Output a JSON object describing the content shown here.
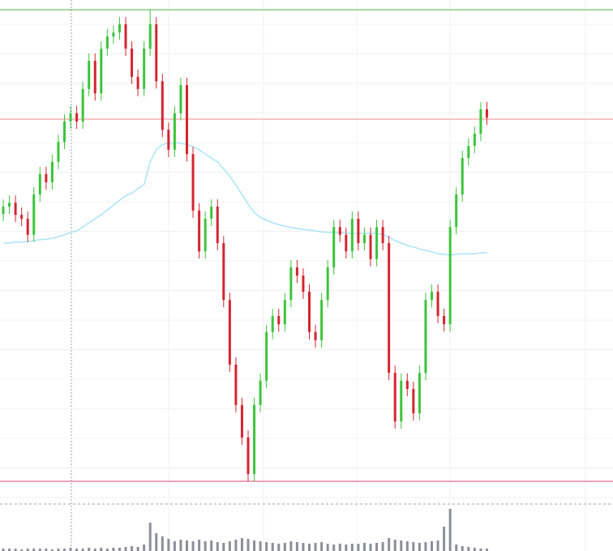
{
  "chart_data": {
    "type": "candlestick",
    "open": [
      56,
      57.5,
      58.3,
      55.8,
      55,
      51.7,
      60,
      64.2,
      62.5,
      66.7,
      70.8,
      75,
      76.7,
      75,
      81.7,
      87.5,
      80.8,
      90,
      92.5,
      93.3,
      95,
      90,
      84.2,
      81.7,
      90,
      95,
      83.3,
      73.3,
      69.2,
      76.7,
      82.5,
      68.3,
      56.7,
      48.3,
      55,
      57.5,
      50,
      38.3,
      25,
      16.7,
      10,
      2.5,
      16.7,
      21.7,
      31.7,
      35,
      33.3,
      38.3,
      45,
      43.3,
      40,
      31.7,
      30,
      38.3,
      45,
      53.3,
      51.7,
      48.3,
      55,
      50,
      51.7,
      46.7,
      53.3,
      50,
      23.3,
      13.3,
      21.7,
      20,
      15,
      23.3,
      38.3,
      40,
      35,
      33.3,
      53.3,
      60,
      67.5,
      70,
      72.5,
      77.5
    ],
    "high": [
      59,
      59.8,
      59.8,
      57.3,
      56.5,
      61.5,
      65.7,
      65.7,
      68.2,
      72.3,
      76.5,
      78.2,
      78.2,
      83.2,
      89,
      89,
      91.5,
      94,
      94.8,
      96.5,
      96.5,
      91.5,
      85.7,
      91.5,
      98,
      96.5,
      84.8,
      74.8,
      78.2,
      84,
      84,
      69.8,
      58.2,
      56.5,
      59,
      59,
      51.5,
      39.8,
      26.5,
      18.2,
      11.5,
      18.2,
      23.2,
      33.2,
      36.5,
      36.5,
      39.8,
      46.5,
      46.5,
      44.8,
      41.5,
      33.2,
      39.8,
      46.5,
      54.8,
      54.8,
      53.2,
      56.5,
      56.5,
      53.2,
      53.2,
      54.8,
      54.8,
      51.5,
      24.8,
      23.2,
      23.2,
      21.5,
      24.8,
      39.8,
      41.5,
      41.5,
      36.5,
      54.8,
      61.5,
      69,
      71.5,
      74,
      79,
      79
    ],
    "low": [
      54.5,
      56,
      54.3,
      53.5,
      50.2,
      50.2,
      58.5,
      61,
      61,
      65.2,
      69.3,
      73.5,
      73.5,
      73.5,
      80.2,
      79.3,
      79.3,
      88.5,
      91,
      91.8,
      88.5,
      82.7,
      80.2,
      80.2,
      88.5,
      81.8,
      71.8,
      67.7,
      67.7,
      75.2,
      66.8,
      55.2,
      46.8,
      46.8,
      53.5,
      48.5,
      36.8,
      23.5,
      15.2,
      8.5,
      1,
      1,
      15.2,
      20.2,
      30.2,
      31.8,
      31.8,
      36.8,
      41.8,
      38.5,
      30.2,
      28.5,
      28.5,
      36.8,
      43.5,
      50.2,
      46.8,
      46.8,
      48.5,
      48.5,
      45.2,
      45.2,
      48.5,
      21.8,
      11.8,
      11.8,
      18.5,
      13.5,
      13.5,
      21.8,
      36.8,
      33.5,
      31.8,
      31.8,
      51.8,
      58.5,
      66,
      68.5,
      71,
      74.3
    ],
    "close": [
      57.5,
      58.3,
      55.8,
      55,
      51.7,
      60,
      64.2,
      62.5,
      66.7,
      70.8,
      75,
      76.7,
      75,
      81.7,
      87.5,
      80.8,
      90,
      92.5,
      93.3,
      95,
      90,
      84.2,
      81.7,
      90,
      95,
      83.3,
      73.3,
      69.2,
      76.7,
      82.5,
      68.3,
      56.7,
      48.3,
      55,
      57.5,
      50,
      38.3,
      25,
      16.7,
      10,
      2.5,
      16.7,
      21.7,
      31.7,
      35,
      33.3,
      38.3,
      45,
      43.3,
      40,
      31.7,
      30,
      38.3,
      45,
      53.3,
      51.7,
      48.3,
      55,
      50,
      51.7,
      46.7,
      53.3,
      50,
      23.3,
      13.3,
      21.7,
      20,
      15,
      23.3,
      38.3,
      40,
      35,
      33.3,
      53.3,
      60,
      67.5,
      70,
      72.5,
      77.5,
      75.8
    ],
    "moving_average": {
      "color": "#a8e4f8",
      "values": [
        50,
        50,
        50.2,
        50.2,
        50.3,
        50.5,
        50.7,
        50.8,
        51,
        51.3,
        51.7,
        52.2,
        52.5,
        53.3,
        54.2,
        55,
        55.8,
        56.8,
        57.8,
        58.8,
        59.7,
        60.3,
        61.2,
        62,
        66.7,
        69.2,
        70.3,
        70.5,
        70.7,
        70.5,
        70.3,
        69.8,
        69.2,
        68.3,
        67.5,
        66.7,
        65.3,
        63.7,
        62,
        60,
        58,
        56.3,
        55.3,
        54.7,
        54.2,
        53.8,
        53.5,
        53.2,
        53,
        52.8,
        52.7,
        52.5,
        52.3,
        52.2,
        52.2,
        52.2,
        52,
        52,
        52,
        52,
        52,
        52,
        51.8,
        51.2,
        50.5,
        50,
        49.5,
        49.2,
        48.8,
        48.5,
        48.2,
        47.8,
        47.7,
        47.5,
        47.7,
        47.8,
        47.8,
        47.8,
        48,
        48
      ]
    },
    "volume": {
      "color": "#8a8f99",
      "ylim": [
        0,
        58
      ],
      "values": [
        3,
        3,
        3,
        2,
        3,
        3,
        3,
        3,
        2,
        3,
        3,
        4,
        3,
        3,
        4,
        3,
        4,
        3,
        4,
        4,
        5,
        6,
        5,
        8,
        35,
        22,
        18,
        15,
        12,
        14,
        13,
        12,
        14,
        12,
        13,
        11,
        10,
        12,
        14,
        16,
        15,
        13,
        12,
        11,
        10,
        9,
        10,
        12,
        11,
        10,
        9,
        10,
        11,
        9,
        8,
        9,
        8,
        9,
        9,
        10,
        9,
        10,
        11,
        16,
        14,
        13,
        12,
        11,
        10,
        11,
        12,
        13,
        30,
        52,
        8,
        6,
        5,
        4,
        3,
        3
      ]
    },
    "levels": [
      {
        "value": 98,
        "color": "#6cc46c"
      },
      {
        "value": 75.5,
        "color": "#f4a0a8"
      },
      {
        "value": 1,
        "color": "#e46a8a"
      }
    ],
    "up_color": "#3cc43c",
    "down_color": "#d42430",
    "ylim": [
      0,
      100
    ],
    "grid": true
  }
}
